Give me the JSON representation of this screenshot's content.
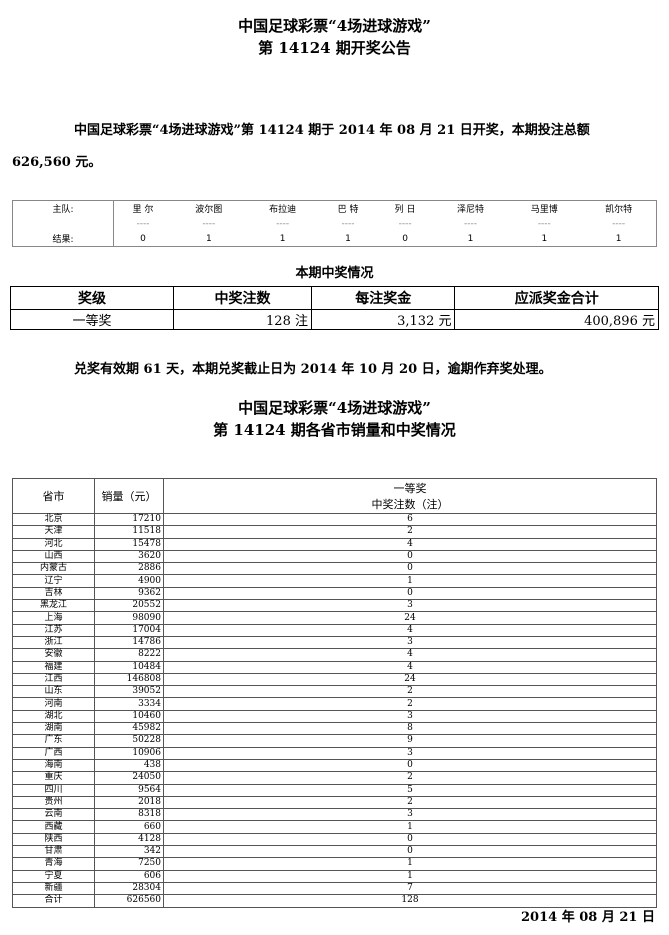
{
  "header": {
    "title1": "中国足球彩票“4场进球游戏”",
    "title2": "第 14124 期开奖公告"
  },
  "announcement": {
    "line1": "中国足球彩票“4场进球游戏”第 14124 期于 2014 年 08 月 21 日开奖，本期投注总额",
    "line2": "626,560 元。"
  },
  "teams": {
    "home_label": "主队:",
    "result_label": "结果:",
    "dash": "----",
    "items": [
      {
        "name": "里 尔",
        "result": "0"
      },
      {
        "name": "波尔图",
        "result": "1"
      },
      {
        "name": "布拉迪",
        "result": "1"
      },
      {
        "name": "巴 特",
        "result": "1"
      },
      {
        "name": "列 日",
        "result": "0"
      },
      {
        "name": "泽尼特",
        "result": "1"
      },
      {
        "name": "马里博",
        "result": "1"
      },
      {
        "name": "凯尔特",
        "result": "1"
      }
    ]
  },
  "prize": {
    "caption": "本期中奖情况",
    "headers": [
      "奖级",
      "中奖注数",
      "每注奖金",
      "应派奖金合计"
    ],
    "rows": [
      {
        "level": "一等奖",
        "count": "128 注",
        "per": "3,132 元",
        "total": "400,896 元"
      }
    ]
  },
  "notice": "兑奖有效期 61 天，本期兑奖截止日为 2014 年 10 月 20 日，逾期作弃奖处理。",
  "province_title": {
    "line1": "中国足球彩票“4场进球游戏”",
    "line2": "第 14124 期各省市销量和中奖情况"
  },
  "province": {
    "headers": {
      "name": "省市",
      "sales": "销量（元）",
      "prize1": "一等奖",
      "prize1_sub": "中奖注数（注）"
    },
    "rows": [
      [
        "北京",
        "17210",
        "6"
      ],
      [
        "天津",
        "11518",
        "2"
      ],
      [
        "河北",
        "15478",
        "4"
      ],
      [
        "山西",
        "3620",
        "0"
      ],
      [
        "内蒙古",
        "2886",
        "0"
      ],
      [
        "辽宁",
        "4900",
        "1"
      ],
      [
        "吉林",
        "9362",
        "0"
      ],
      [
        "黑龙江",
        "20552",
        "3"
      ],
      [
        "上海",
        "98090",
        "24"
      ],
      [
        "江苏",
        "17004",
        "4"
      ],
      [
        "浙江",
        "14786",
        "3"
      ],
      [
        "安徽",
        "8222",
        "4"
      ],
      [
        "福建",
        "10484",
        "4"
      ],
      [
        "江西",
        "146808",
        "24"
      ],
      [
        "山东",
        "39052",
        "2"
      ],
      [
        "河南",
        "3334",
        "2"
      ],
      [
        "湖北",
        "10460",
        "3"
      ],
      [
        "湖南",
        "45982",
        "8"
      ],
      [
        "广东",
        "50228",
        "9"
      ],
      [
        "广西",
        "10906",
        "3"
      ],
      [
        "海南",
        "438",
        "0"
      ],
      [
        "重庆",
        "24050",
        "2"
      ],
      [
        "四川",
        "9564",
        "5"
      ],
      [
        "贵州",
        "2018",
        "2"
      ],
      [
        "云南",
        "8318",
        "3"
      ],
      [
        "西藏",
        "660",
        "1"
      ],
      [
        "陕西",
        "4128",
        "0"
      ],
      [
        "甘肃",
        "342",
        "0"
      ],
      [
        "青海",
        "7250",
        "1"
      ],
      [
        "宁夏",
        "606",
        "1"
      ],
      [
        "新疆",
        "28304",
        "7"
      ],
      [
        "合计",
        "626560",
        "128"
      ]
    ]
  },
  "footer_date": "2014 年 08 月 21 日"
}
